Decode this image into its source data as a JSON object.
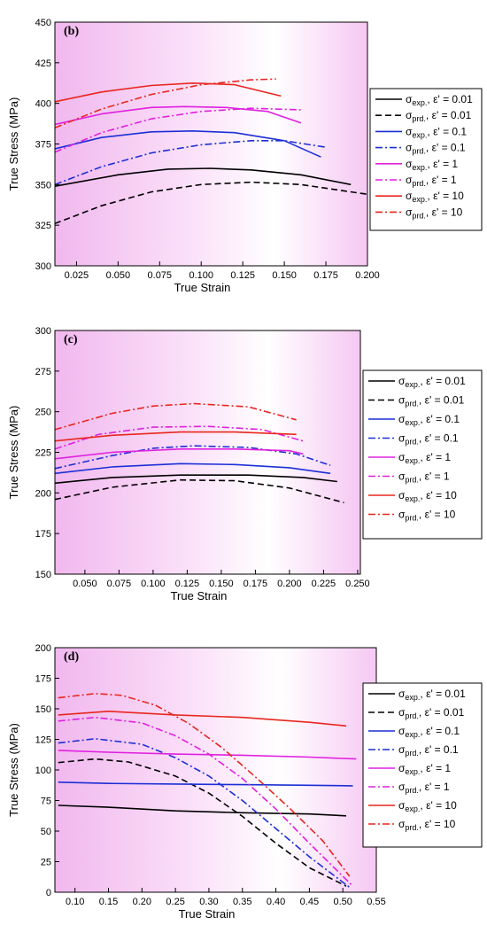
{
  "chart_data": [
    {
      "type": "line",
      "panel": "(b)",
      "xlabel": "True Strain",
      "ylabel": "True Stress (MPa)",
      "xlim": [
        0.012,
        0.2
      ],
      "ylim": [
        300,
        450
      ],
      "xticks": [
        0.025,
        0.05,
        0.075,
        0.1,
        0.125,
        0.15,
        0.175,
        0.2
      ],
      "xtick_labels": [
        "0.025",
        "0.050",
        "0.075",
        "0.100",
        "0.125",
        "0.150",
        "0.175",
        "0.200"
      ],
      "yticks": [
        300,
        325,
        350,
        375,
        400,
        425,
        450
      ],
      "ytick_labels": [
        "300",
        "325",
        "350",
        "375",
        "400",
        "425",
        "450"
      ],
      "legend_position": "right",
      "series": [
        {
          "legend": [
            "exp.",
            "0.01"
          ],
          "color": "#000000",
          "dash": "solid",
          "x": [
            0.012,
            0.05,
            0.08,
            0.105,
            0.13,
            0.16,
            0.19
          ],
          "y": [
            349,
            356,
            359.5,
            360,
            359,
            356,
            350
          ]
        },
        {
          "legend": [
            "prd.",
            "0.01"
          ],
          "color": "#000000",
          "dash": "dash",
          "x": [
            0.012,
            0.04,
            0.07,
            0.1,
            0.13,
            0.16,
            0.2
          ],
          "y": [
            326,
            337,
            345.5,
            350,
            351.5,
            350,
            344
          ]
        },
        {
          "legend": [
            "exp.",
            "0.1"
          ],
          "color": "#1c2fd6",
          "dash": "solid",
          "x": [
            0.012,
            0.04,
            0.07,
            0.095,
            0.12,
            0.15,
            0.172
          ],
          "y": [
            372,
            379,
            382.5,
            383,
            382,
            377,
            367
          ]
        },
        {
          "legend": [
            "prd.",
            "0.1"
          ],
          "color": "#1c2fd6",
          "dash": "dashdot",
          "x": [
            0.012,
            0.04,
            0.07,
            0.1,
            0.13,
            0.15,
            0.175
          ],
          "y": [
            350,
            361,
            369.5,
            374.5,
            377,
            377,
            373
          ]
        },
        {
          "legend": [
            "exp.",
            "1"
          ],
          "color": "#e020e0",
          "dash": "solid",
          "x": [
            0.012,
            0.04,
            0.07,
            0.09,
            0.115,
            0.14,
            0.16
          ],
          "y": [
            387,
            393.5,
            397.5,
            398,
            397.5,
            395,
            388
          ]
        },
        {
          "legend": [
            "prd.",
            "1"
          ],
          "color": "#e020e0",
          "dash": "dashdot",
          "x": [
            0.012,
            0.04,
            0.07,
            0.1,
            0.13,
            0.16
          ],
          "y": [
            370,
            382,
            390.5,
            395,
            397,
            396
          ]
        },
        {
          "legend": [
            "exp.",
            "10"
          ],
          "color": "#e8261e",
          "dash": "solid",
          "x": [
            0.012,
            0.04,
            0.07,
            0.095,
            0.12,
            0.148
          ],
          "y": [
            401,
            407,
            411,
            412.5,
            411.5,
            404.5
          ]
        },
        {
          "legend": [
            "prd.",
            "10"
          ],
          "color": "#e8261e",
          "dash": "dashdot",
          "x": [
            0.012,
            0.04,
            0.07,
            0.1,
            0.13,
            0.145
          ],
          "y": [
            385,
            396.5,
            405.5,
            411.5,
            414.5,
            415
          ]
        }
      ]
    },
    {
      "type": "line",
      "panel": "(c)",
      "xlabel": "True Strain",
      "ylabel": "True Stress (MPa)",
      "xlim": [
        0.028,
        0.252
      ],
      "ylim": [
        150,
        300
      ],
      "xticks": [
        0.05,
        0.075,
        0.1,
        0.125,
        0.15,
        0.175,
        0.2,
        0.225,
        0.25
      ],
      "xtick_labels": [
        "0.050",
        "0.075",
        "0.100",
        "0.125",
        "0.150",
        "0.175",
        "0.200",
        "0.225",
        "0.250"
      ],
      "yticks": [
        150,
        175,
        200,
        225,
        250,
        275,
        300
      ],
      "ytick_labels": [
        "150",
        "175",
        "200",
        "225",
        "250",
        "275",
        "300"
      ],
      "legend_position": "right",
      "series": [
        {
          "legend": [
            "exp.",
            "0.01"
          ],
          "color": "#000000",
          "dash": "solid",
          "x": [
            0.028,
            0.07,
            0.12,
            0.17,
            0.21,
            0.235
          ],
          "y": [
            206,
            209.5,
            211,
            211,
            209.5,
            207
          ]
        },
        {
          "legend": [
            "prd.",
            "0.01"
          ],
          "color": "#000000",
          "dash": "dash",
          "x": [
            0.028,
            0.07,
            0.12,
            0.16,
            0.2,
            0.24
          ],
          "y": [
            196,
            203.5,
            208,
            207.5,
            203,
            194
          ]
        },
        {
          "legend": [
            "exp.",
            "0.1"
          ],
          "color": "#1c2fd6",
          "dash": "solid",
          "x": [
            0.028,
            0.07,
            0.12,
            0.16,
            0.2,
            0.23
          ],
          "y": [
            212,
            216,
            218,
            217.5,
            215.5,
            212
          ]
        },
        {
          "legend": [
            "prd.",
            "0.1"
          ],
          "color": "#1c2fd6",
          "dash": "dashdot",
          "x": [
            0.028,
            0.07,
            0.1,
            0.13,
            0.17,
            0.205,
            0.23
          ],
          "y": [
            215,
            223,
            227.5,
            229,
            228,
            224,
            217
          ]
        },
        {
          "legend": [
            "exp.",
            "1"
          ],
          "color": "#e020e0",
          "dash": "solid",
          "x": [
            0.028,
            0.07,
            0.12,
            0.16,
            0.2,
            0.21
          ],
          "y": [
            221,
            225,
            227,
            227,
            226,
            224
          ]
        },
        {
          "legend": [
            "prd.",
            "1"
          ],
          "color": "#e020e0",
          "dash": "dashdot",
          "x": [
            0.028,
            0.06,
            0.1,
            0.14,
            0.18,
            0.21
          ],
          "y": [
            227,
            236,
            240.5,
            241,
            239,
            232
          ]
        },
        {
          "legend": [
            "exp.",
            "10"
          ],
          "color": "#e8261e",
          "dash": "solid",
          "x": [
            0.028,
            0.07,
            0.12,
            0.16,
            0.205
          ],
          "y": [
            232,
            235.5,
            237.5,
            237.5,
            236
          ]
        },
        {
          "legend": [
            "prd.",
            "10"
          ],
          "color": "#e8261e",
          "dash": "dashdot",
          "x": [
            0.028,
            0.07,
            0.1,
            0.13,
            0.17,
            0.205
          ],
          "y": [
            239,
            249,
            253.5,
            255,
            253,
            245
          ]
        }
      ]
    },
    {
      "type": "line",
      "panel": "(d)",
      "xlabel": "True Strain",
      "ylabel": "True Stress (MPa)",
      "xlim": [
        0.07,
        0.55
      ],
      "ylim": [
        0,
        200
      ],
      "xticks": [
        0.1,
        0.15,
        0.2,
        0.25,
        0.3,
        0.35,
        0.4,
        0.45,
        0.5,
        0.55
      ],
      "xtick_labels": [
        "0.10",
        "0.15",
        "0.20",
        "0.25",
        "0.30",
        "0.35",
        "0.40",
        "0.45",
        "0.50",
        "0.55"
      ],
      "yticks": [
        0,
        25,
        50,
        75,
        100,
        125,
        150,
        175,
        200
      ],
      "ytick_labels": [
        "0",
        "25",
        "50",
        "75",
        "100",
        "125",
        "150",
        "175",
        "200"
      ],
      "legend_position": "right",
      "series": [
        {
          "legend": [
            "exp.",
            "0.01"
          ],
          "color": "#000000",
          "dash": "solid",
          "x": [
            0.075,
            0.15,
            0.25,
            0.35,
            0.45,
            0.505
          ],
          "y": [
            71,
            69.5,
            66.5,
            65,
            64,
            62.5
          ]
        },
        {
          "legend": [
            "prd.",
            "0.01"
          ],
          "color": "#000000",
          "dash": "dash",
          "x": [
            0.075,
            0.13,
            0.18,
            0.25,
            0.3,
            0.35,
            0.4,
            0.45,
            0.505
          ],
          "y": [
            106,
            109,
            106.5,
            95,
            81,
            62,
            40,
            20,
            5
          ]
        },
        {
          "legend": [
            "exp.",
            "0.1"
          ],
          "color": "#1c2fd6",
          "dash": "solid",
          "x": [
            0.075,
            0.15,
            0.25,
            0.35,
            0.45,
            0.515
          ],
          "y": [
            90,
            89,
            88.5,
            88,
            87.5,
            87
          ]
        },
        {
          "legend": [
            "prd.",
            "0.1"
          ],
          "color": "#1c2fd6",
          "dash": "dashdot",
          "x": [
            0.075,
            0.13,
            0.2,
            0.25,
            0.3,
            0.35,
            0.4,
            0.45,
            0.51
          ],
          "y": [
            122,
            125.5,
            121,
            110,
            95,
            75,
            52,
            29,
            4
          ]
        },
        {
          "legend": [
            "exp.",
            "1"
          ],
          "color": "#e020e0",
          "dash": "solid",
          "x": [
            0.075,
            0.15,
            0.25,
            0.35,
            0.45,
            0.52
          ],
          "y": [
            116,
            114.5,
            113,
            112,
            110.5,
            109
          ]
        },
        {
          "legend": [
            "prd.",
            "1"
          ],
          "color": "#e020e0",
          "dash": "dashdot",
          "x": [
            0.075,
            0.13,
            0.2,
            0.25,
            0.3,
            0.35,
            0.4,
            0.45,
            0.515
          ],
          "y": [
            140,
            143,
            138.5,
            128,
            113,
            93,
            68,
            40,
            5
          ]
        },
        {
          "legend": [
            "exp.",
            "10"
          ],
          "color": "#e8261e",
          "dash": "solid",
          "x": [
            0.075,
            0.15,
            0.25,
            0.35,
            0.45,
            0.505
          ],
          "y": [
            145,
            148,
            145,
            143,
            139,
            136
          ]
        },
        {
          "legend": [
            "prd.",
            "10"
          ],
          "color": "#e8261e",
          "dash": "dashdot",
          "x": [
            0.075,
            0.13,
            0.17,
            0.22,
            0.27,
            0.32,
            0.37,
            0.42,
            0.47,
            0.51
          ],
          "y": [
            159,
            162.5,
            161,
            153,
            138,
            118,
            94,
            69,
            42,
            13
          ]
        }
      ]
    }
  ]
}
